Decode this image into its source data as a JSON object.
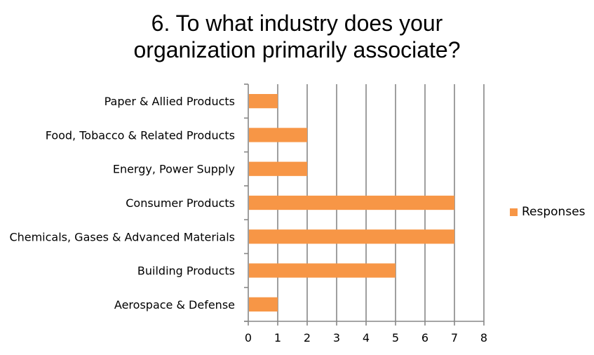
{
  "chart_data": {
    "type": "bar",
    "orientation": "horizontal",
    "title_lines": [
      "6. To what industry does your",
      "organization primarily associate?"
    ],
    "categories": [
      "Paper & Allied Products",
      "Food, Tobacco & Related Products",
      "Energy, Power Supply",
      "Consumer Products",
      "Chemicals, Gases & Advanced Materials",
      "Building Products",
      "Aerospace & Defense"
    ],
    "series": [
      {
        "name": "Responses",
        "values": [
          1,
          2,
          2,
          7,
          7,
          5,
          1
        ],
        "color": "#F79646"
      }
    ],
    "xlim": [
      0,
      8
    ],
    "xticks": [
      "0",
      "1",
      "2",
      "3",
      "4",
      "5",
      "6",
      "7",
      "8"
    ],
    "grid": true,
    "legend_position": "right",
    "colors": {
      "bar": "#F79646",
      "grid": "#878787",
      "axis": "#878787"
    }
  }
}
